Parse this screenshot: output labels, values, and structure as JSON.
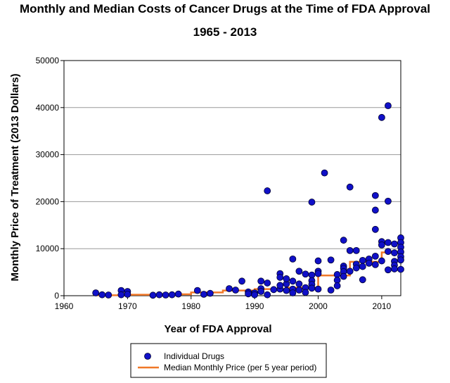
{
  "chart_data": {
    "type": "scatter",
    "title": "Monthly and Median Costs of Cancer Drugs at the Time of FDA Approval",
    "subtitle": "1965 - 2013",
    "xlabel": "Year of FDA Approval",
    "ylabel": "Monthly Price of Treatment (2013 Dollars)",
    "xlim": [
      1960,
      2013
    ],
    "ylim": [
      0,
      50000
    ],
    "xticks": [
      1960,
      1970,
      1980,
      1990,
      2000,
      2010
    ],
    "yticks": [
      0,
      10000,
      20000,
      30000,
      40000,
      50000
    ],
    "grid": "horizontal",
    "legend_position": "bottom",
    "colors": {
      "points": "#1010c8",
      "median": "#f07828",
      "grid": "#999999"
    },
    "series": [
      {
        "name": "Individual Drugs",
        "kind": "scatter",
        "points": [
          [
            1965,
            600
          ],
          [
            1966,
            200
          ],
          [
            1967,
            150
          ],
          [
            1969,
            1100
          ],
          [
            1969,
            200
          ],
          [
            1970,
            900
          ],
          [
            1970,
            300
          ],
          [
            1974,
            100
          ],
          [
            1975,
            200
          ],
          [
            1976,
            150
          ],
          [
            1977,
            200
          ],
          [
            1978,
            350
          ],
          [
            1981,
            1100
          ],
          [
            1982,
            300
          ],
          [
            1983,
            500
          ],
          [
            1986,
            1500
          ],
          [
            1987,
            1200
          ],
          [
            1988,
            3100
          ],
          [
            1989,
            800
          ],
          [
            1989,
            400
          ],
          [
            1990,
            600
          ],
          [
            1990,
            200
          ],
          [
            1991,
            3100
          ],
          [
            1991,
            1500
          ],
          [
            1991,
            900
          ],
          [
            1992,
            22300
          ],
          [
            1992,
            2700
          ],
          [
            1992,
            200
          ],
          [
            1993,
            1300
          ],
          [
            1994,
            1400
          ],
          [
            1994,
            4700
          ],
          [
            1994,
            3900
          ],
          [
            1994,
            2200
          ],
          [
            1995,
            2500
          ],
          [
            1995,
            1100
          ],
          [
            1995,
            3600
          ],
          [
            1996,
            7800
          ],
          [
            1996,
            3100
          ],
          [
            1996,
            1400
          ],
          [
            1996,
            600
          ],
          [
            1997,
            5200
          ],
          [
            1997,
            1200
          ],
          [
            1997,
            2500
          ],
          [
            1998,
            4600
          ],
          [
            1998,
            1700
          ],
          [
            1998,
            700
          ],
          [
            1999,
            19900
          ],
          [
            1999,
            4400
          ],
          [
            1999,
            3200
          ],
          [
            1999,
            2400
          ],
          [
            1999,
            1600
          ],
          [
            2000,
            7400
          ],
          [
            2000,
            5200
          ],
          [
            2000,
            4700
          ],
          [
            2000,
            1400
          ],
          [
            2001,
            26100
          ],
          [
            2002,
            7600
          ],
          [
            2002,
            1200
          ],
          [
            2003,
            4500
          ],
          [
            2003,
            3300
          ],
          [
            2003,
            2100
          ],
          [
            2004,
            11800
          ],
          [
            2004,
            6300
          ],
          [
            2004,
            5800
          ],
          [
            2004,
            5100
          ],
          [
            2004,
            4100
          ],
          [
            2005,
            23100
          ],
          [
            2005,
            9600
          ],
          [
            2005,
            5200
          ],
          [
            2006,
            9600
          ],
          [
            2006,
            6700
          ],
          [
            2006,
            5900
          ],
          [
            2007,
            7500
          ],
          [
            2007,
            6200
          ],
          [
            2007,
            3400
          ],
          [
            2008,
            7800
          ],
          [
            2008,
            6900
          ],
          [
            2009,
            21300
          ],
          [
            2009,
            18200
          ],
          [
            2009,
            14100
          ],
          [
            2009,
            8400
          ],
          [
            2009,
            6600
          ],
          [
            2010,
            37900
          ],
          [
            2010,
            11500
          ],
          [
            2010,
            10800
          ],
          [
            2010,
            7400
          ],
          [
            2011,
            40400
          ],
          [
            2011,
            20100
          ],
          [
            2011,
            11300
          ],
          [
            2011,
            9400
          ],
          [
            2011,
            5500
          ],
          [
            2012,
            11000
          ],
          [
            2012,
            9100
          ],
          [
            2012,
            7300
          ],
          [
            2012,
            6500
          ],
          [
            2012,
            5700
          ],
          [
            2013,
            12300
          ],
          [
            2013,
            11300
          ],
          [
            2013,
            10300
          ],
          [
            2013,
            9300
          ],
          [
            2013,
            8300
          ],
          [
            2013,
            7600
          ],
          [
            2013,
            5600
          ]
        ]
      },
      {
        "name": "Median Monthly Price (per 5 year period)",
        "kind": "step",
        "steps": [
          [
            1965,
            100
          ],
          [
            1970,
            200
          ],
          [
            1975,
            300
          ],
          [
            1980,
            700
          ],
          [
            1985,
            1100
          ],
          [
            1990,
            1400
          ],
          [
            1995,
            1700
          ],
          [
            2000,
            4300
          ],
          [
            2005,
            7200
          ],
          [
            2010,
            9200
          ],
          [
            2013,
            9200
          ]
        ]
      }
    ]
  }
}
